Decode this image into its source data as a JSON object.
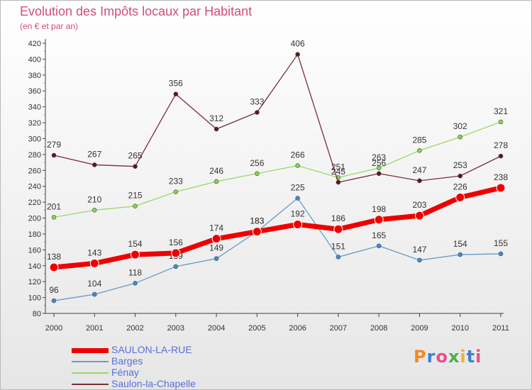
{
  "title": "Evolution des Impôts locaux par Habitant",
  "subtitle": "(en € et par an)",
  "logo_text": "Proxiti",
  "colors": {
    "title": "#d04f73",
    "background_top": "#ffffff",
    "background_bottom": "#e6e6e6",
    "axis": "#404040",
    "legend_text": "#5a6fd8"
  },
  "chart_data": {
    "type": "line",
    "title": "Evolution des Impôts locaux par Habitant",
    "subtitle": "(en € et par an)",
    "xlabel": "",
    "ylabel": "",
    "x": [
      "2000",
      "2001",
      "2002",
      "2003",
      "2004",
      "2005",
      "2006",
      "2007",
      "2008",
      "2009",
      "2010",
      "2011"
    ],
    "ylim": [
      80,
      420
    ],
    "ytick_step": 20,
    "grid": false,
    "legend_position": "bottom-left",
    "series": [
      {
        "name": "SAULON-LA-RUE",
        "color": "#ee0000",
        "marker": "#ee0000",
        "values": [
          138,
          143,
          154,
          156,
          174,
          183,
          192,
          186,
          198,
          203,
          226,
          238
        ],
        "highlight": true
      },
      {
        "name": "Barges",
        "color": "#6a9bc4",
        "marker": "#3f89d1",
        "values": [
          96,
          104,
          118,
          139,
          149,
          183,
          225,
          151,
          165,
          147,
          154,
          155
        ],
        "highlight": false
      },
      {
        "name": "Fénay",
        "color": "#9ad86a",
        "marker": "#86d24f",
        "values": [
          201,
          210,
          215,
          233,
          246,
          256,
          266,
          251,
          263,
          285,
          302,
          321
        ],
        "highlight": false
      },
      {
        "name": "Saulon-la-Chapelle",
        "color": "#7b2d36",
        "marker": "#5a1620",
        "values": [
          279,
          267,
          265,
          356,
          312,
          333,
          406,
          245,
          256,
          247,
          253,
          278
        ],
        "highlight": false
      }
    ]
  }
}
